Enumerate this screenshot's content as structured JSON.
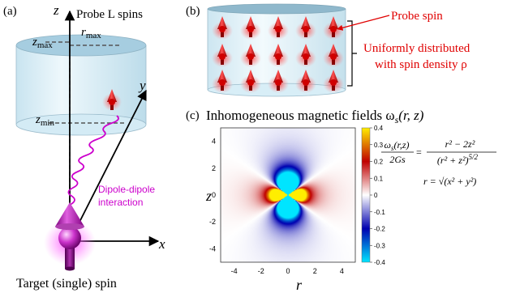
{
  "panel_a": {
    "label": "(a)",
    "axis_z": "z",
    "axis_y": "y",
    "axis_x": "x",
    "probe_title": "Probe L spins",
    "r_max": "r",
    "r_max_sub": "max",
    "z_max": "z",
    "z_max_sub": "max",
    "z_min": "z",
    "z_min_sub": "min",
    "interaction_line1": "Dipole-dipole",
    "interaction_line2": "interaction",
    "target_caption": "Target (single) spin"
  },
  "panel_b": {
    "label": "(b)",
    "probe_spin": "Probe spin",
    "uniform_line1": "Uniformly distributed",
    "uniform_line2": "with spin density ρ"
  },
  "panel_c": {
    "label": "(c)",
    "title": "Inhomogeneous magnetic fields ω",
    "title_sub": "s",
    "title_args": "(r, z)",
    "formula_lhs_num": "ω",
    "formula_lhs_sub": "s",
    "formula_lhs_args": "(r,z)",
    "formula_lhs_den": "2Gs",
    "formula_rhs_num": "r² − 2z²",
    "formula_rhs_den": "(r² + z²)",
    "formula_rhs_exp": "5/2",
    "r_def": "r = √(x² + y²)"
  },
  "colors": {
    "magenta": "#cc00cc",
    "red": "#e00000",
    "cylinder_fill": "#dbeff7",
    "cylinder_top": "#a9cfe0"
  },
  "chart_data": {
    "type": "heatmap",
    "function": "(r^2 - 2 z^2) / (r^2 + z^2)^(5/2)",
    "xlabel": "r",
    "ylabel": "z",
    "xlim": [
      -5,
      5
    ],
    "ylim": [
      -5,
      5
    ],
    "x_ticks": [
      "-4",
      "-2",
      "0",
      "2",
      "4"
    ],
    "y_ticks": [
      "4",
      "2",
      "0",
      "-2",
      "-4"
    ],
    "colorbar_range": [
      -0.4,
      0.4
    ],
    "colorbar_ticks": [
      "0.4",
      "0.3",
      "0.2",
      "0.1",
      "0",
      "-0.1",
      "-0.2",
      "-0.3",
      "-0.4"
    ],
    "colormap": [
      "#00e5ff",
      "#0000b0",
      "#ffffff",
      "#c00000",
      "#ffee00"
    ]
  }
}
